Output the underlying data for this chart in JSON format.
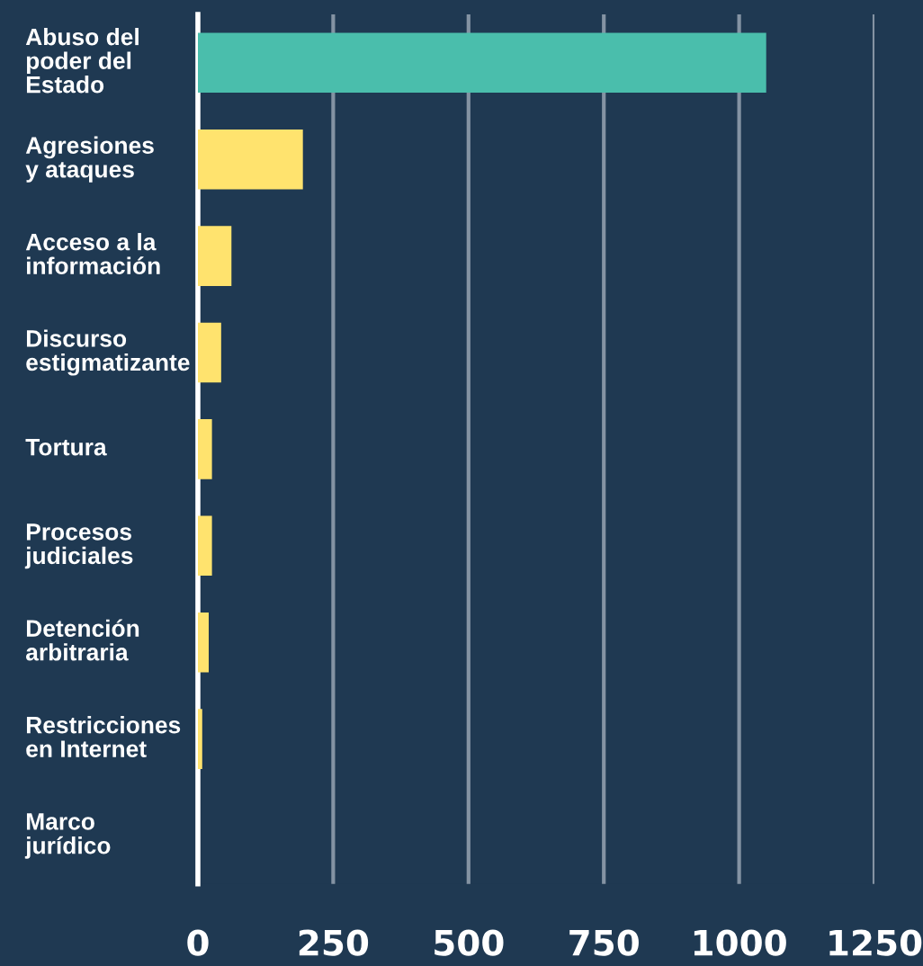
{
  "chart_data": {
    "type": "bar",
    "orientation": "horizontal",
    "categories": [
      "Abuso del\npoder del\nEstado",
      "Agresiones\ny ataques",
      "Acceso a la\ninformación",
      "Discurso\nestigmatizante",
      "Tortura",
      "Procesos\njudiciales",
      "Detención\narbitraria",
      "Restricciones\nen Internet",
      "Marco\njurídico"
    ],
    "values": [
      1050,
      194,
      62,
      43,
      26,
      26,
      20,
      8,
      0
    ],
    "colors": [
      "#4abeac",
      "#ffe36e",
      "#ffe36e",
      "#ffe36e",
      "#ffe36e",
      "#ffe36e",
      "#ffe36e",
      "#ffe36e",
      "#ffe36e"
    ],
    "xlim": [
      0,
      1250
    ],
    "xticks": [
      0,
      250,
      500,
      750,
      1000,
      1250
    ],
    "grid": "x"
  }
}
